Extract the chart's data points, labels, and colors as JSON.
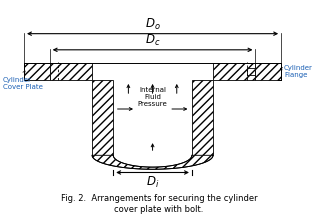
{
  "title": "Fig. 2.  Arrangements for securing the cylinder\ncover plate with bolt.",
  "label_Do": "$D_o$",
  "label_Dc": "$D_c$",
  "label_Di": "$D_i$",
  "label_cylinder_cover": "Cylinder\nCover Plate",
  "label_cylinder_flange": "Cylinder\nFlange",
  "label_internal": "Internal\nFluid\nPressure",
  "line_color": "#000000",
  "bg_color": "#ffffff",
  "fig_width": 3.18,
  "fig_height": 2.18,
  "dpi": 100
}
